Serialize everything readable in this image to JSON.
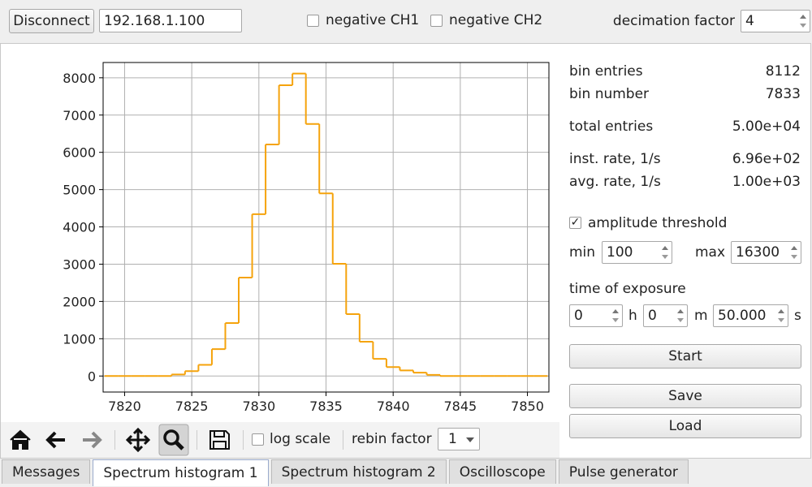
{
  "toolbar": {
    "disconnect": "Disconnect",
    "address": "192.168.1.100",
    "negative_ch1": "negative CH1",
    "negative_ch1_checked": false,
    "negative_ch2": "negative CH2",
    "negative_ch2_checked": false,
    "decimation_label": "decimation factor",
    "decimation_value": "4"
  },
  "stats": [
    {
      "label": "bin entries",
      "value": "8112"
    },
    {
      "label": "bin number",
      "value": "7833"
    },
    {
      "label": "total entries",
      "value": "5.00e+04"
    },
    {
      "label": "inst. rate, 1/s",
      "value": "6.96e+02"
    },
    {
      "label": "avg. rate, 1/s",
      "value": "1.00e+03"
    }
  ],
  "threshold": {
    "label": "amplitude threshold",
    "checked": true,
    "min_label": "min",
    "min_value": "100",
    "max_label": "max",
    "max_value": "16300"
  },
  "exposure": {
    "label": "time of exposure",
    "hours": "0",
    "hours_unit": "h",
    "minutes": "0",
    "minutes_unit": "m",
    "seconds": "50.000",
    "seconds_unit": "s"
  },
  "buttons": [
    "Start",
    "Save",
    "Load"
  ],
  "plot_toolbar": {
    "log_scale": "log scale",
    "rebin_label": "rebin factor",
    "rebin_value": "1"
  },
  "tabs": [
    "Messages",
    "Spectrum histogram 1",
    "Spectrum histogram 2",
    "Oscilloscope",
    "Pulse generator"
  ],
  "active_tab": 1,
  "chart_data": {
    "type": "histogram",
    "color": "#f5a30c",
    "log_scale": false,
    "grid": true,
    "bins": [
      7818.5,
      7819.5,
      7820.5,
      7821.5,
      7822.5,
      7823.5,
      7824.5,
      7825.5,
      7826.5,
      7827.5,
      7828.5,
      7829.5,
      7830.5,
      7831.5,
      7832.5,
      7833.5,
      7834.5,
      7835.5,
      7836.5,
      7837.5,
      7838.5,
      7839.5,
      7840.5,
      7841.5,
      7842.5,
      7843.5,
      7844.5,
      7845.5,
      7846.5,
      7847.5,
      7848.5,
      7849.5,
      7850.5,
      7851.5
    ],
    "values": [
      0,
      0,
      0,
      0,
      0,
      40,
      130,
      300,
      720,
      1420,
      2640,
      4340,
      6210,
      7800,
      8112,
      6760,
      4900,
      3010,
      1660,
      920,
      460,
      240,
      150,
      90,
      30,
      0,
      0,
      0,
      0,
      0,
      0,
      0,
      0
    ],
    "xlim": [
      7818.4,
      7851.6
    ],
    "xticks": [
      7820,
      7825,
      7830,
      7835,
      7840,
      7845,
      7850
    ],
    "ylim": [
      -430,
      8410
    ],
    "yticks": [
      0,
      1000,
      2000,
      3000,
      4000,
      5000,
      6000,
      7000,
      8000
    ]
  }
}
